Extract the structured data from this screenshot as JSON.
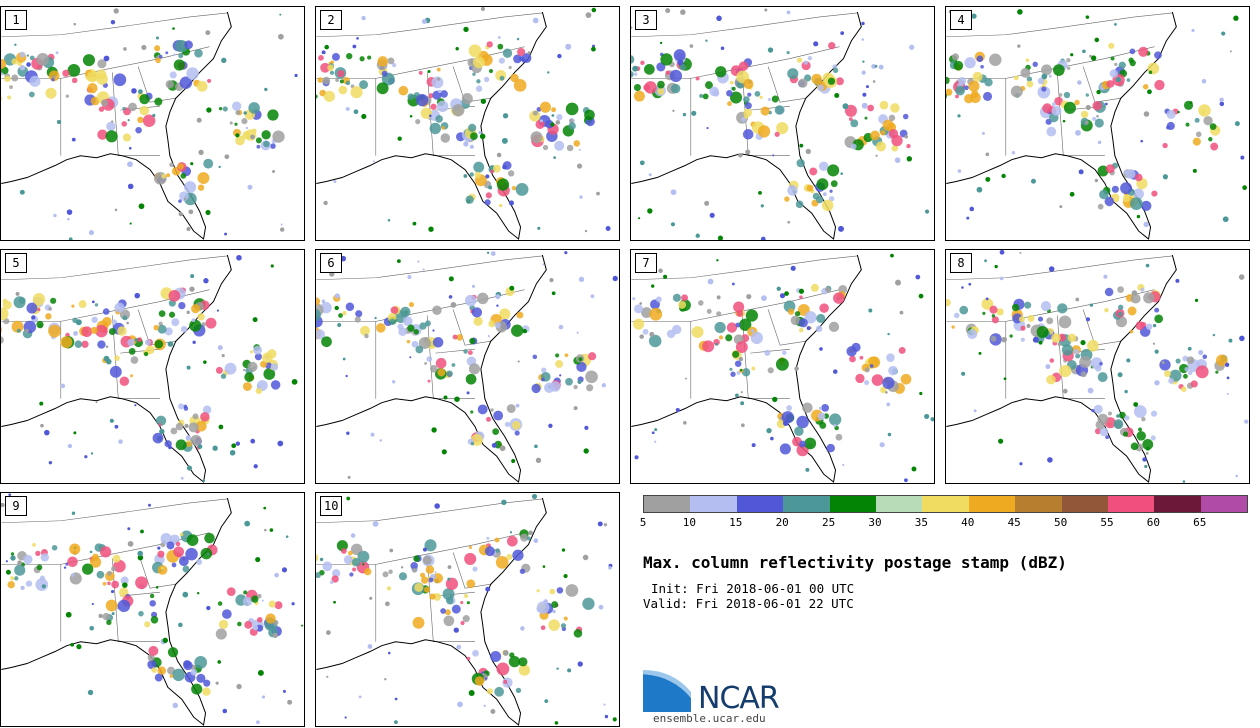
{
  "panels": [
    {
      "label": "1"
    },
    {
      "label": "2"
    },
    {
      "label": "3"
    },
    {
      "label": "4"
    },
    {
      "label": "5"
    },
    {
      "label": "6"
    },
    {
      "label": "7"
    },
    {
      "label": "8"
    },
    {
      "label": "9"
    },
    {
      "label": "10"
    }
  ],
  "colorbar": {
    "colors": [
      "#a0a0a0",
      "#b4bef0",
      "#5058d8",
      "#4c9898",
      "#048404",
      "#b8dcb8",
      "#f0dc60",
      "#eeaa20",
      "#b87e30",
      "#905838",
      "#f0507c",
      "#6c1838",
      "#b04ca8"
    ],
    "ticks": [
      "5",
      "10",
      "15",
      "20",
      "25",
      "30",
      "35",
      "40",
      "45",
      "50",
      "55",
      "60",
      "65"
    ]
  },
  "title": "Max. column reflectivity postage stamp (dBZ)",
  "init": "Init: Fri 2018-06-01 00 UTC",
  "valid": "Valid: Fri 2018-06-01 22 UTC",
  "logo": {
    "name": "NCAR",
    "url": "ensemble.ucar.edu"
  }
}
